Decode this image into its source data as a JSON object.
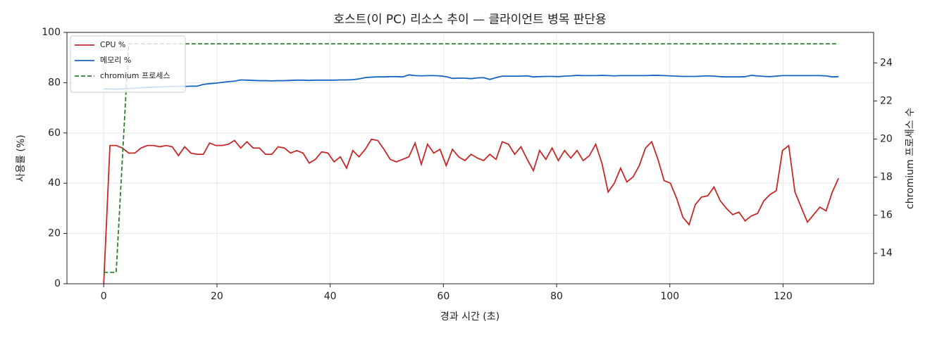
{
  "chart_data": {
    "type": "line",
    "title": "호스트(이 PC) 리소스 추이 — 클라이언트 병목 판단용",
    "xlabel": "경과 시간 (초)",
    "ylabel": "사용률 (%)",
    "y2label": "chromium 프로세스 수",
    "x": [
      0,
      1.1,
      2.2,
      3.3,
      4.4,
      5.5,
      6.6,
      7.7,
      8.8,
      9.9,
      11,
      12.1,
      13.2,
      14.3,
      15.4,
      16.5,
      17.6,
      18.7,
      19.8,
      20.9,
      22,
      23.1,
      24.2,
      25.3,
      26.4,
      27.5,
      28.6,
      29.7,
      30.8,
      31.9,
      33,
      34.1,
      35.2,
      36.3,
      37.4,
      38.5,
      39.6,
      40.7,
      41.8,
      42.9,
      44,
      45.1,
      46.2,
      47.3,
      48.4,
      49.5,
      50.6,
      51.7,
      52.8,
      53.9,
      55,
      56.1,
      57.2,
      58.3,
      59.4,
      60.5,
      61.6,
      62.7,
      63.8,
      64.9,
      66,
      67.1,
      68.2,
      69.3,
      70.4,
      71.5,
      72.6,
      73.7,
      74.8,
      75.9,
      77,
      78.1,
      79.2,
      80.3,
      81.4,
      82.5,
      83.6,
      84.7,
      85.8,
      86.9,
      88,
      89.1,
      90.2,
      91.3,
      92.4,
      93.5,
      94.6,
      95.7,
      96.8,
      97.9,
      99,
      100.1,
      101.2,
      102.3,
      103.4,
      104.5,
      105.6,
      106.7,
      107.8,
      108.9,
      110,
      111.1,
      112.2,
      113.3,
      114.4,
      115.5,
      116.6,
      117.7,
      118.8,
      119.9,
      121,
      122.1,
      123.2,
      124.3,
      125.4,
      126.5,
      127.6,
      128.7,
      129.8
    ],
    "series": [
      {
        "name": "CPU %",
        "color": "#c62828",
        "style": "solid",
        "values": [
          0,
          55,
          55,
          54,
          52,
          52,
          54,
          55,
          55,
          54.5,
          55,
          54.5,
          51,
          54.5,
          52,
          51.5,
          51.5,
          56,
          55,
          55,
          55.5,
          57,
          54,
          56.5,
          54,
          54,
          51.5,
          51.5,
          54.5,
          54,
          52,
          53,
          52,
          48,
          49.5,
          52.5,
          52,
          48.5,
          50.5,
          46,
          53,
          50.5,
          53.5,
          57.5,
          57,
          53.5,
          49.5,
          48.5,
          49.5,
          50.5,
          56,
          47.5,
          55.5,
          52,
          53.5,
          47,
          53.5,
          50.5,
          49,
          51.5,
          50,
          49,
          51.5,
          49.5,
          56.5,
          55.5,
          51.5,
          54.5,
          49.5,
          45,
          53,
          49.5,
          54,
          49,
          53,
          50,
          53,
          49,
          51,
          55.5,
          48,
          36.5,
          40,
          46,
          40.5,
          42.5,
          47,
          54,
          56.5,
          49.5,
          41,
          40,
          34,
          26.5,
          23.5,
          31.5,
          34.5,
          35,
          38.5,
          33,
          30,
          27.5,
          28.5,
          25,
          27,
          28,
          33,
          35.5,
          37,
          53,
          55,
          36.5,
          30.5,
          24.5,
          27.5,
          30.5,
          29,
          36.5,
          42
        ]
      },
      {
        "name": "메모리 %",
        "color": "#1565c0",
        "style": "solid",
        "values": [
          77.5,
          77.5,
          77.4,
          77.5,
          77.7,
          77.8,
          78,
          78.1,
          78.2,
          78.3,
          78.4,
          78.5,
          78.5,
          78.5,
          78.6,
          78.6,
          79.3,
          79.6,
          79.8,
          80.1,
          80.4,
          80.6,
          81.1,
          81,
          80.9,
          80.8,
          80.8,
          80.7,
          80.8,
          80.8,
          80.9,
          81,
          81,
          80.9,
          81,
          81,
          81,
          81,
          81.1,
          81.1,
          81.2,
          81.5,
          82,
          82.2,
          82.3,
          82.3,
          82.4,
          82.4,
          82.3,
          83.1,
          82.8,
          82.7,
          82.8,
          82.8,
          82.7,
          82.4,
          81.7,
          81.8,
          81.8,
          81.6,
          81.9,
          82,
          81.3,
          82,
          82.6,
          82.6,
          82.6,
          82.6,
          82.7,
          82.3,
          82.4,
          82.5,
          82.5,
          82.4,
          82.6,
          82.7,
          82.9,
          82.8,
          82.8,
          82.8,
          82.9,
          82.8,
          82.7,
          82.8,
          82.8,
          82.8,
          82.8,
          82.8,
          82.9,
          82.9,
          82.8,
          82.7,
          82.6,
          82.5,
          82.5,
          82.5,
          82.6,
          82.7,
          82.6,
          82.4,
          82.3,
          82.3,
          82.3,
          82.4,
          82.9,
          82.7,
          82.5,
          82.4,
          82.6,
          82.8,
          82.8,
          82.8,
          82.8,
          82.8,
          82.8,
          82.8,
          82.7,
          82.3,
          82.4
        ]
      },
      {
        "name": "chromium 프로세스",
        "color": "#2e7d32",
        "style": "dashed",
        "axis": "y2",
        "values": [
          13,
          13,
          13,
          19,
          25,
          25,
          25,
          25,
          25,
          25,
          25,
          25,
          25,
          25,
          25,
          25,
          25,
          25,
          25,
          25,
          25,
          25,
          25,
          25,
          25,
          25,
          25,
          25,
          25,
          25,
          25,
          25,
          25,
          25,
          25,
          25,
          25,
          25,
          25,
          25,
          25,
          25,
          25,
          25,
          25,
          25,
          25,
          25,
          25,
          25,
          25,
          25,
          25,
          25,
          25,
          25,
          25,
          25,
          25,
          25,
          25,
          25,
          25,
          25,
          25,
          25,
          25,
          25,
          25,
          25,
          25,
          25,
          25,
          25,
          25,
          25,
          25,
          25,
          25,
          25,
          25,
          25,
          25,
          25,
          25,
          25,
          25,
          25,
          25,
          25,
          25,
          25,
          25,
          25,
          25,
          25,
          25,
          25,
          25,
          25,
          25,
          25,
          25,
          25,
          25,
          25,
          25,
          25,
          25,
          25,
          25,
          25,
          25,
          25,
          25,
          25,
          25,
          25,
          25
        ]
      }
    ],
    "xlim": [
      -6.5,
      136
    ],
    "xticks": [
      0,
      20,
      40,
      60,
      80,
      100,
      120
    ],
    "ylim": [
      0,
      100
    ],
    "yticks": [
      0,
      20,
      40,
      60,
      80,
      100
    ],
    "y2lim": [
      12.4,
      25.6
    ],
    "y2ticks": [
      14,
      16,
      18,
      20,
      22,
      24
    ],
    "grid": true,
    "legend": "upper left"
  }
}
